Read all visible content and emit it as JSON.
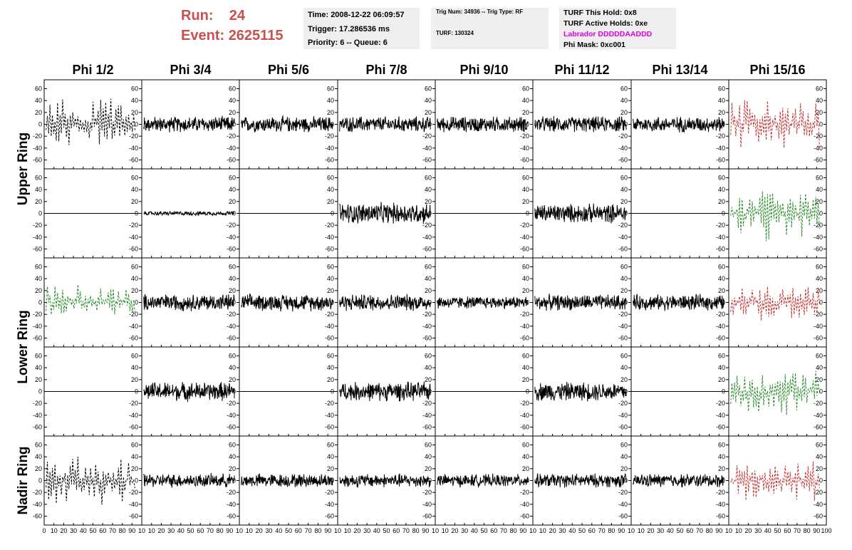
{
  "header": {
    "run_label": "Run:",
    "run_value": "24",
    "event_label": "Event:",
    "event_value": "2625115",
    "time": "Time: 2008-12-22 06:09:57",
    "trigger": "Trigger: 17.286536 ms",
    "priority": "Priority: 6 -- Queue: 6",
    "trig_num": "Trig Num: 34936 -- Trig Type: RF",
    "turf": "TURF: 130324",
    "turf_this_hold": "TURF This Hold: 0x8",
    "turf_active_holds": "TURF Active Holds: 0xe",
    "labrador": "Labrador DDDDDAADDD",
    "phi_mask": "Phi Mask: 0xc001"
  },
  "chart_data": {
    "type": "line",
    "columns": [
      "Phi 1/2",
      "Phi 3/4",
      "Phi 5/6",
      "Phi 7/8",
      "Phi 9/10",
      "Phi 11/12",
      "Phi 13/14",
      "Phi 15/16"
    ],
    "ring_labels": [
      "Upper Ring",
      "Lower Ring",
      "Nadir Ring"
    ],
    "rows_per_ring": [
      2,
      2,
      1
    ],
    "xlim": [
      0,
      100
    ],
    "ylim": [
      -75,
      75
    ],
    "x_ticks": [
      0,
      10,
      20,
      30,
      40,
      50,
      60,
      70,
      80,
      90,
      100
    ],
    "x_tick_labels_col0": [
      "0",
      "10",
      "20",
      "30",
      "40",
      "50",
      "60",
      "70",
      "80",
      "90",
      "10"
    ],
    "x_tick_labels_mid": [
      "10",
      "20",
      "30",
      "40",
      "50",
      "60",
      "70",
      "80",
      "90",
      "10"
    ],
    "x_tick_labels_last": [
      "10",
      "20",
      "30",
      "40",
      "50",
      "60",
      "70",
      "80",
      "90",
      "100"
    ],
    "y_tick_labels": [
      "60",
      "40",
      "20",
      "0",
      "-20",
      "-40",
      "-60"
    ],
    "y_ticks": [
      60,
      40,
      20,
      0,
      -20,
      -40,
      -60
    ],
    "colors": {
      "normal": "#000000",
      "triggered_red": "#c0302e",
      "triggered_green": "#2a8a2a",
      "header_red": "#c9504f",
      "magenta": "#e000e0"
    },
    "series": [
      [
        "black-dash:60",
        "black:15",
        "black:15",
        "black:15",
        "black:15",
        "black:15",
        "black:15",
        "red-dash:55"
      ],
      [
        "flat",
        "black:4",
        "flat",
        "black:20",
        "flat",
        "black:18",
        "flat",
        "green-dash:55"
      ],
      [
        "green-dash:35",
        "black:16",
        "black:16",
        "black:16",
        "black:12",
        "black:15",
        "black:15",
        "red-dash:35"
      ],
      [
        "flat",
        "black:18",
        "flat",
        "black:18",
        "flat",
        "black:18",
        "flat",
        "green-dash:55"
      ],
      [
        "black-dash:50",
        "black:13",
        "black:13",
        "black:13",
        "black:12",
        "black:13",
        "black:13",
        "red-dash:40"
      ]
    ]
  }
}
